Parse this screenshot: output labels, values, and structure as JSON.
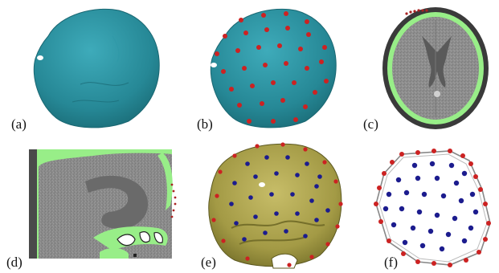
{
  "figure": {
    "panels": [
      {
        "id": "a",
        "label": "(a)",
        "content": "teal-skull-surface"
      },
      {
        "id": "b",
        "label": "(b)",
        "content": "teal-skull-with-red-landmarks"
      },
      {
        "id": "c",
        "label": "(c)",
        "content": "axial-ct-slice-with-green-skull"
      },
      {
        "id": "d",
        "label": "(d)",
        "content": "sagittal-ct-slice-with-green-skull"
      },
      {
        "id": "e",
        "label": "(e)",
        "content": "olive-skull-interior-with-red-and-blue-landmarks"
      },
      {
        "id": "f",
        "label": "(f)",
        "content": "landmark-point-set-with-hull"
      }
    ],
    "colors": {
      "skull_teal": "#2a8f9e",
      "skull_olive": "#a39a45",
      "bone_green": "#98ee88",
      "landmark_red": "#cc2222",
      "landmark_blue": "#1c1c8e",
      "ct_gray": "#8a8a8a"
    }
  }
}
